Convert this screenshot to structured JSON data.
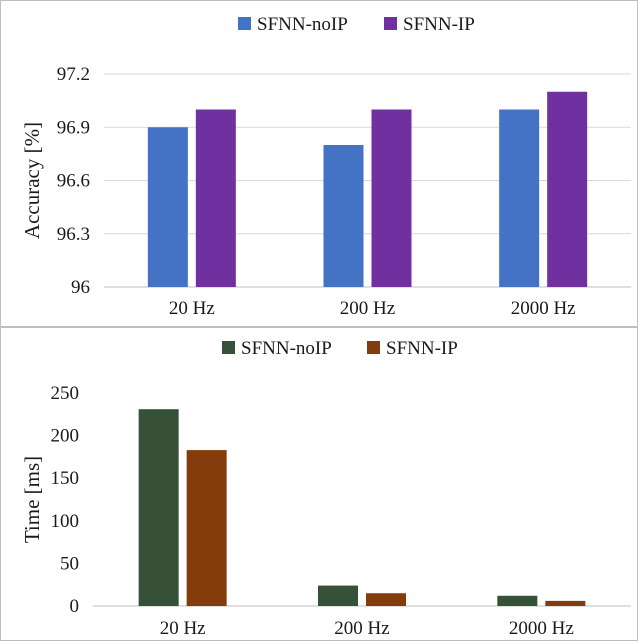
{
  "chart_data": [
    {
      "type": "bar",
      "categories": [
        "20 Hz",
        "200 Hz",
        "2000 Hz"
      ],
      "series": [
        {
          "name": "SFNN-noIP",
          "values": [
            96.9,
            96.8,
            97.0
          ],
          "color": "#4472c4"
        },
        {
          "name": "SFNN-IP",
          "values": [
            97.0,
            97.0,
            97.1
          ],
          "color": "#7030a0"
        }
      ],
      "ylabel": "Accuracy  [%]",
      "ylim": [
        96,
        97.2
      ],
      "yticks": [
        96,
        96.3,
        96.6,
        96.9,
        97.2
      ],
      "ytick_labels": [
        "96",
        "96.3",
        "96.6",
        "96.9",
        "97.2"
      ],
      "grid": true,
      "legend_position": "top"
    },
    {
      "type": "bar",
      "categories": [
        "20 Hz",
        "200 Hz",
        "2000 Hz"
      ],
      "series": [
        {
          "name": "SFNN-noIP",
          "values": [
            231,
            24,
            12
          ],
          "color": "#375038"
        },
        {
          "name": "SFNN-IP",
          "values": [
            183,
            15,
            6
          ],
          "color": "#843c0c"
        }
      ],
      "ylabel": "Time [ms]",
      "ylim": [
        0,
        250
      ],
      "yticks": [
        0,
        50,
        100,
        150,
        200,
        250
      ],
      "ytick_labels": [
        "0",
        "50",
        "100",
        "150",
        "200",
        "250"
      ],
      "grid": false,
      "legend_position": "top"
    }
  ]
}
